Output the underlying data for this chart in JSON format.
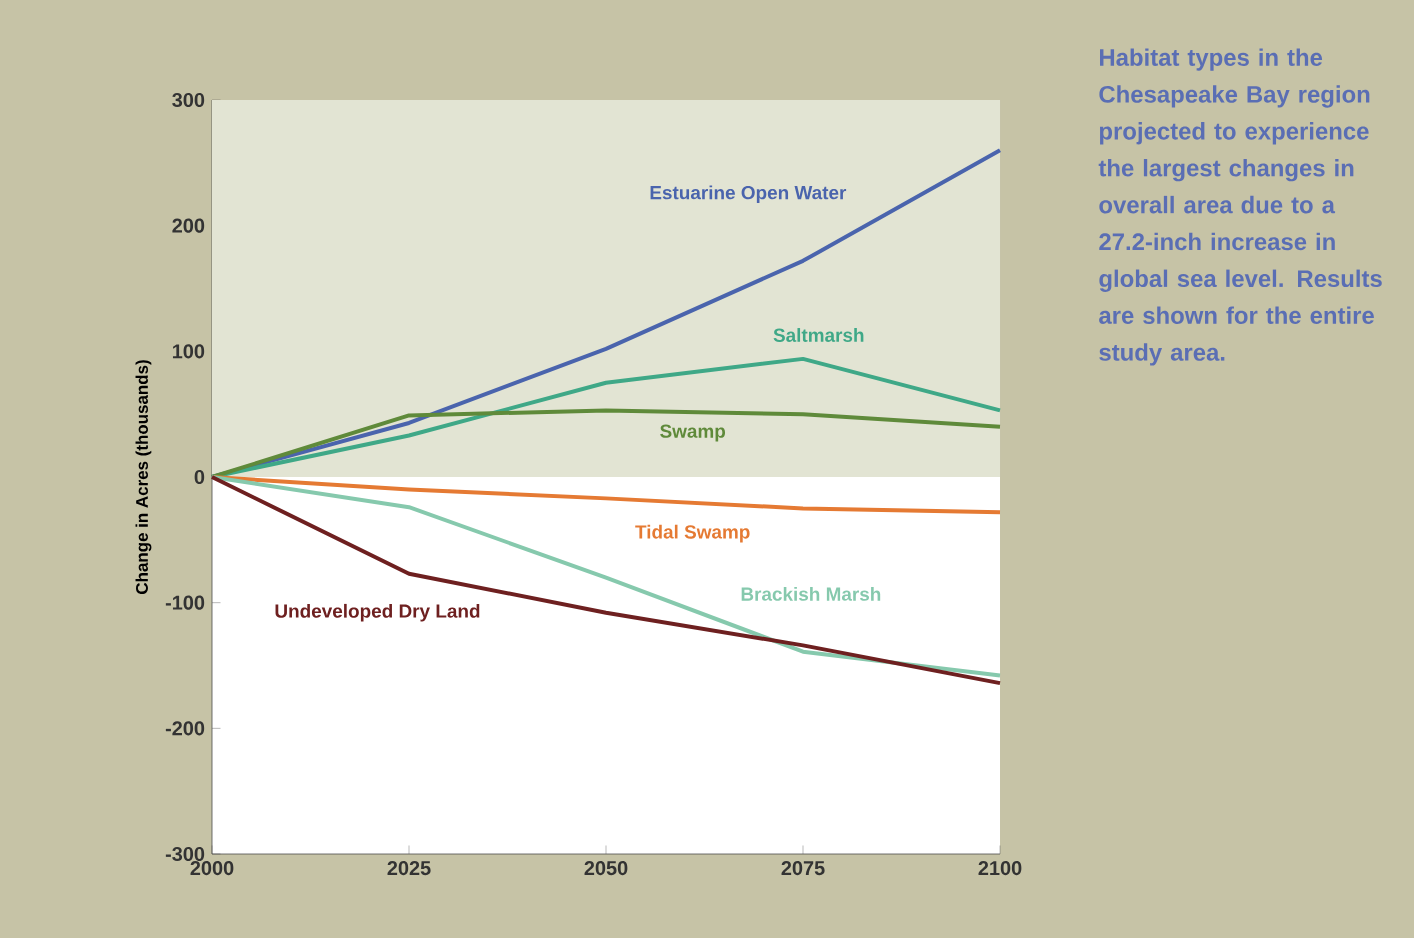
{
  "chart_data": {
    "type": "line",
    "ylabel": "Change in Acres (thousands)",
    "x": [
      2000,
      2025,
      2050,
      2075,
      2100
    ],
    "xlim": [
      2000,
      2100
    ],
    "xticks": [
      2000,
      2025,
      2050,
      2075,
      2100
    ],
    "ylim": [
      -300,
      300
    ],
    "yticks": [
      -300,
      -200,
      -100,
      0,
      100,
      200,
      300
    ],
    "grid": false,
    "marker": "none",
    "line_style": "solid",
    "bands": [
      {
        "axis": "y",
        "from": 0,
        "to": 300,
        "color": "#e2e4d3"
      }
    ],
    "series": [
      {
        "name": "Estuarine Open Water",
        "color": "#4a64ad",
        "values": [
          0,
          43,
          102,
          172,
          260
        ]
      },
      {
        "name": "Saltmarsh",
        "color": "#3fa887",
        "values": [
          0,
          33,
          75,
          94,
          53
        ]
      },
      {
        "name": "Swamp",
        "color": "#5f8a3a",
        "values": [
          0,
          49,
          53,
          50,
          40
        ]
      },
      {
        "name": "Tidal Swamp",
        "color": "#e57a33",
        "values": [
          0,
          -10,
          -17,
          -25,
          -28
        ]
      },
      {
        "name": "Brackish Marsh",
        "color": "#86c9ad",
        "values": [
          0,
          -24,
          -80,
          -139,
          -158
        ]
      },
      {
        "name": "Undeveloped Dry Land",
        "color": "#6e2020",
        "values": [
          0,
          -77,
          -108,
          -134,
          -164
        ]
      }
    ],
    "annotations": [
      "Habitat types in the Chesapeake Bay region projected to experience the largest changes in overall area due to a 27.2-inch increase in global sea level. Results are shown for the entire study area."
    ]
  }
}
